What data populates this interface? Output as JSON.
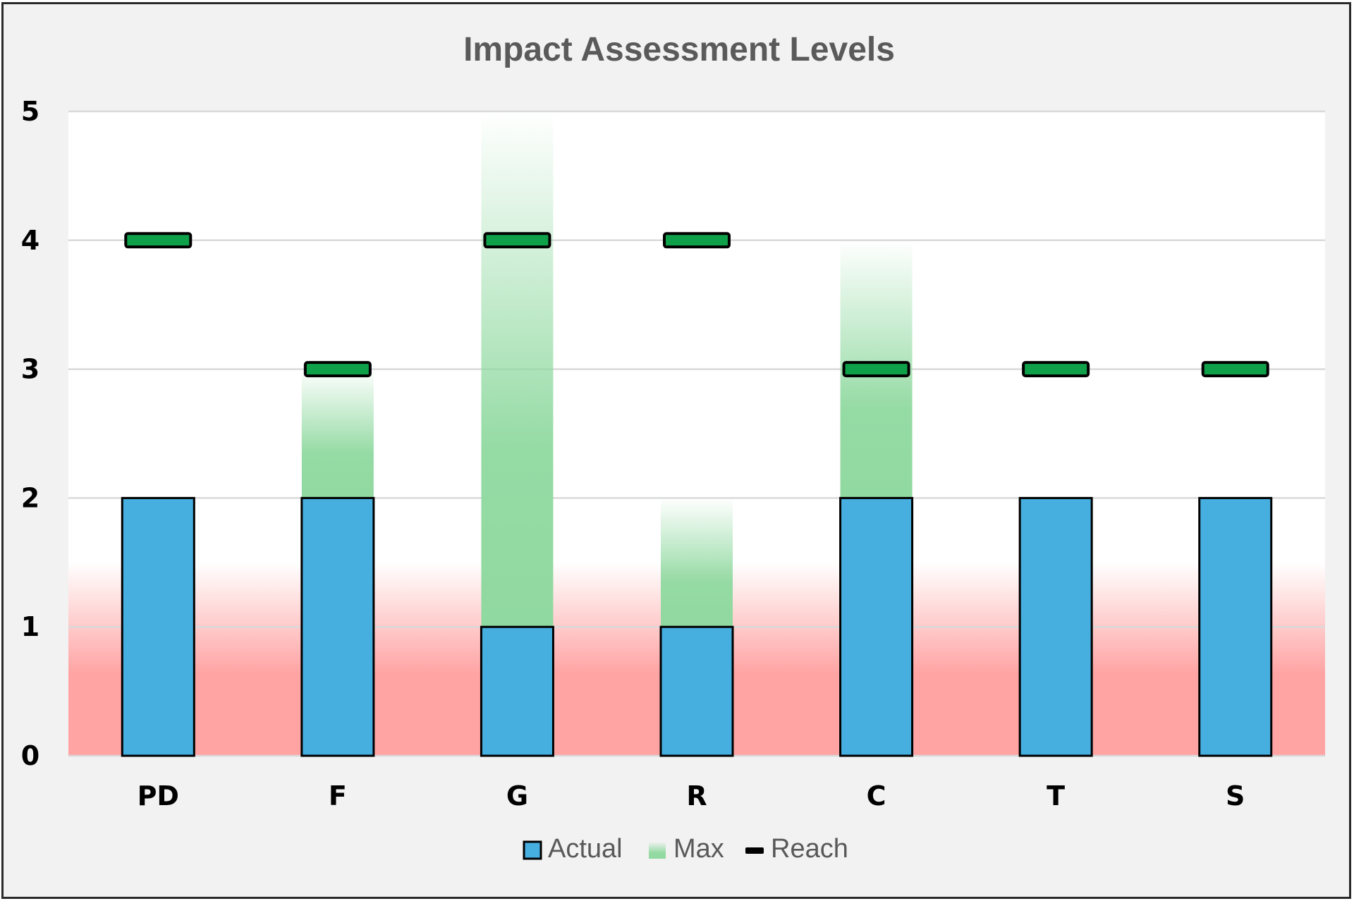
{
  "chart_data": {
    "type": "bar",
    "title": "Impact Assessment Levels",
    "xlabel": "",
    "ylabel": "",
    "ylim": [
      0,
      5
    ],
    "yticks": [
      "0",
      "1",
      "2",
      "3",
      "4",
      "5"
    ],
    "grid": true,
    "legend_position": "bottom",
    "categories": [
      "PD",
      "F",
      "G",
      "R",
      "C",
      "T",
      "S"
    ],
    "series": [
      {
        "name": "Actual",
        "kind": "bar",
        "color": "#47afe0",
        "values": [
          2,
          2,
          1,
          1,
          2,
          2,
          2
        ]
      },
      {
        "name": "Max",
        "kind": "stacked-gradient-bar",
        "color": "#90d9a0",
        "values": [
          2,
          3,
          5,
          2,
          4,
          2,
          2
        ]
      },
      {
        "name": "Reach",
        "kind": "marker",
        "color": "#0fa14a",
        "values": [
          4,
          3,
          4,
          4,
          3,
          3,
          3
        ]
      }
    ],
    "background_band": {
      "from": 0,
      "to": 1.5,
      "color": "#ffa3a3"
    },
    "colors": {
      "plot_background": "#ffffff",
      "chart_background": "#f2f2f2",
      "bar_outline": "#000000",
      "legend_reach_swatch": "#000000"
    }
  }
}
